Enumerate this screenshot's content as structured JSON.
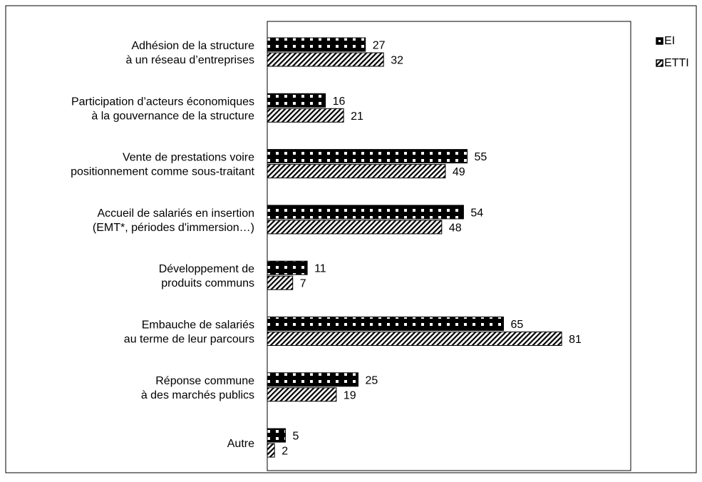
{
  "chart_data": {
    "type": "bar",
    "orientation": "horizontal",
    "categories": [
      [
        "Adhésion de la structure",
        "à un réseau d’entreprises"
      ],
      [
        "Participation d’acteurs économiques",
        "à la gouvernance de la structure"
      ],
      [
        "Vente de prestations voire",
        "positionnement comme sous-traitant"
      ],
      [
        "Accueil de salariés en insertion",
        "(EMT*, périodes d'immersion…)"
      ],
      [
        "Développement de",
        "produits communs"
      ],
      [
        "Embauche de salariés",
        "au terme de leur parcours"
      ],
      [
        "Réponse commune",
        "à des marchés publics"
      ],
      [
        "Autre"
      ]
    ],
    "series": [
      {
        "name": "EI",
        "values": [
          27,
          16,
          55,
          54,
          11,
          65,
          25,
          5
        ],
        "pattern": "dotted",
        "color": "#000000"
      },
      {
        "name": "ETTI",
        "values": [
          32,
          21,
          49,
          48,
          7,
          81,
          19,
          2
        ],
        "pattern": "hatched",
        "color": "#000000"
      }
    ],
    "xlim": [
      0,
      100
    ],
    "grid": false,
    "legend": "top-right",
    "data_labels": true
  }
}
